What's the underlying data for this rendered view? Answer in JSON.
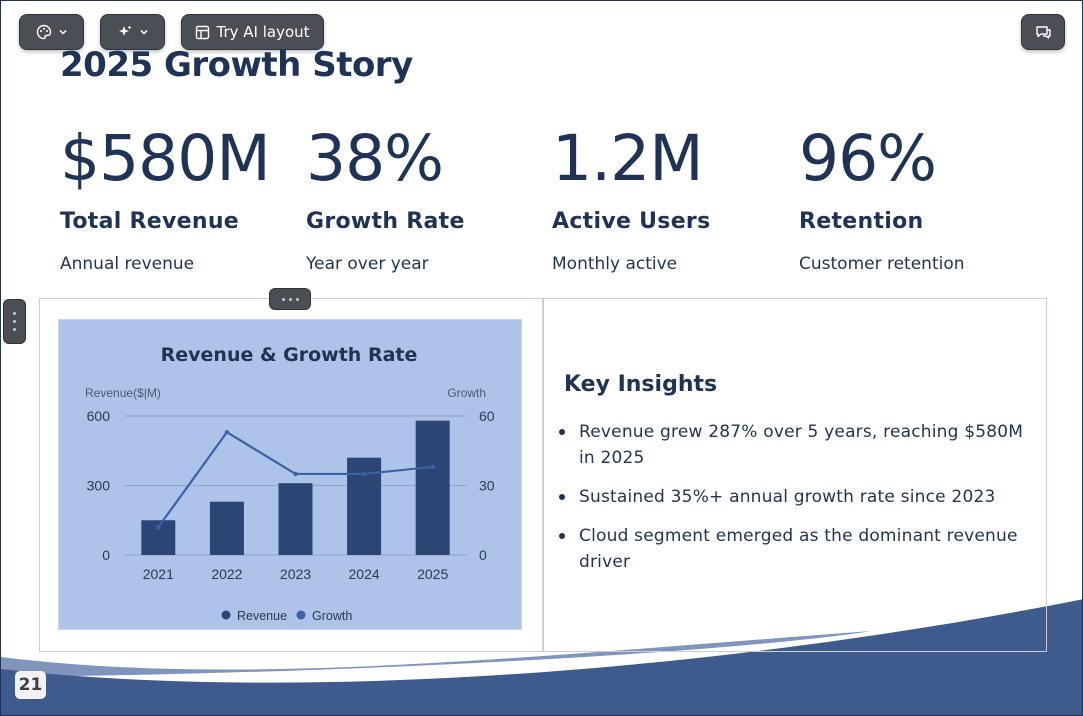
{
  "toolbar": {
    "theme_icon": "palette-icon",
    "ai_icon": "sparkle-icon",
    "layout_label": "Try AI layout",
    "layout_icon": "layout-icon",
    "comment_icon": "comment-icon"
  },
  "slide": {
    "title": "2025 Growth Story",
    "page_number": "21",
    "stats": [
      {
        "value": "$580M",
        "label": "Total Revenue",
        "sub": "Annual revenue"
      },
      {
        "value": "38%",
        "label": "Growth Rate",
        "sub": "Year over year"
      },
      {
        "value": "1.2M",
        "label": "Active Users",
        "sub": "Monthly active"
      },
      {
        "value": "96%",
        "label": "Retention",
        "sub": "Customer retention"
      }
    ],
    "insights_title": "Key Insights",
    "insights": [
      "Revenue grew 287% over 5 years, reaching $580M in 2025",
      "Sustained 35%+ annual growth rate since 2023",
      "Cloud segment emerged as the dominant revenue driver"
    ]
  },
  "colors": {
    "navy": "#1e3356",
    "chart_bg": "#aec3e8",
    "bar": "#2b4675",
    "line": "#3b62a8",
    "wave_dark": "#3f5a8c",
    "wave_light": "#7f95bd"
  },
  "chart_data": {
    "type": "bar",
    "title": "Revenue & Growth Rate",
    "categories": [
      "2021",
      "2022",
      "2023",
      "2024",
      "2025"
    ],
    "series": [
      {
        "name": "Revenue",
        "kind": "bar",
        "axis": "left",
        "values": [
          150,
          230,
          310,
          420,
          580
        ]
      },
      {
        "name": "Growth",
        "kind": "line",
        "axis": "right",
        "values": [
          12,
          53,
          35,
          35,
          38
        ]
      }
    ],
    "ylabel_left": "Revenue($|M)",
    "ylabel_right": "Growth",
    "ylim_left": [
      0,
      600
    ],
    "ylim_right": [
      0,
      60
    ],
    "yticks_left": [
      "0",
      "300",
      "600"
    ],
    "yticks_right": [
      "0",
      "30",
      "60"
    ],
    "grid": true,
    "legend_position": "bottom"
  }
}
